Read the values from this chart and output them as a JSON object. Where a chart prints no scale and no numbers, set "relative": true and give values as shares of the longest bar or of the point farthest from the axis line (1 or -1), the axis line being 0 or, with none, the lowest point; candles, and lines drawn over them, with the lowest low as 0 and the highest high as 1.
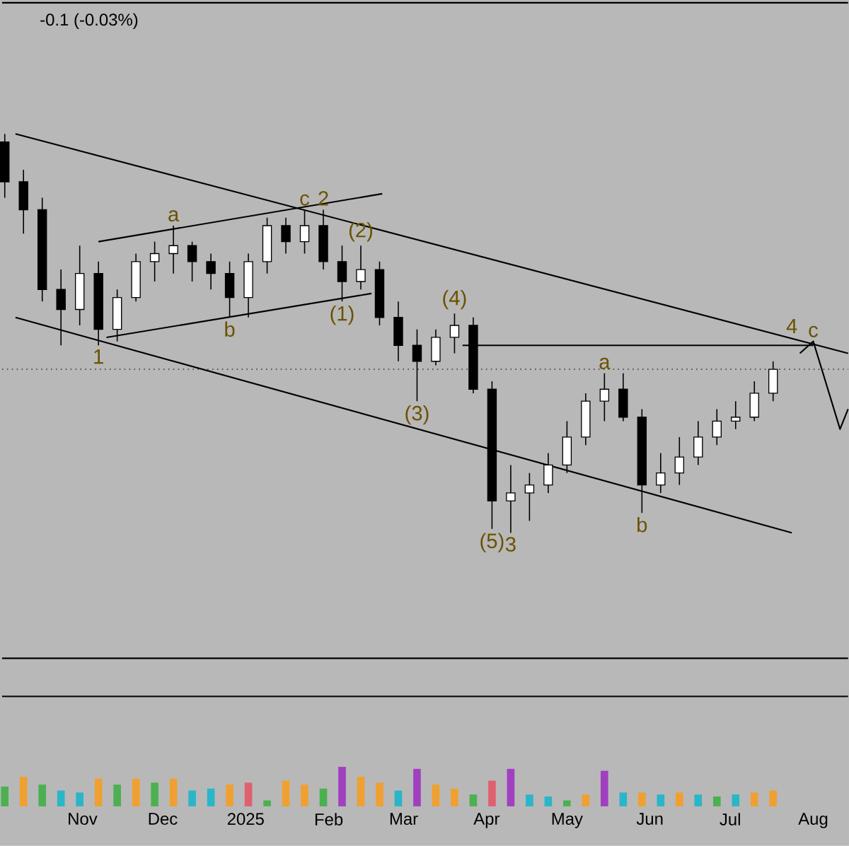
{
  "chart_data": [
    {
      "type": "candlestick",
      "relative": true,
      "tick_labels": false,
      "xlim": [
        "2024-10-02",
        "2025-08-14"
      ],
      "x": [
        "2024-10-03",
        "2024-10-10",
        "2024-10-17",
        "2024-10-24",
        "2024-10-31",
        "2024-11-07",
        "2024-11-14",
        "2024-11-21",
        "2024-11-28",
        "2024-12-05",
        "2024-12-12",
        "2024-12-19",
        "2024-12-26",
        "2025-01-02",
        "2025-01-09",
        "2025-01-16",
        "2025-01-23",
        "2025-01-30",
        "2025-02-06",
        "2025-02-13",
        "2025-02-20",
        "2025-02-27",
        "2025-03-06",
        "2025-03-13",
        "2025-03-20",
        "2025-03-27",
        "2025-04-03",
        "2025-04-10",
        "2025-04-17",
        "2025-04-24",
        "2025-05-01",
        "2025-05-08",
        "2025-05-15",
        "2025-05-22",
        "2025-05-29",
        "2025-06-05",
        "2025-06-12",
        "2025-06-19",
        "2025-06-26",
        "2025-07-03",
        "2025-07-10",
        "2025-07-17"
      ],
      "ohlc": [
        [
          0.98,
          1.0,
          0.84,
          0.88
        ],
        [
          0.88,
          0.91,
          0.75,
          0.81
        ],
        [
          0.81,
          0.84,
          0.58,
          0.61
        ],
        [
          0.61,
          0.66,
          0.47,
          0.56
        ],
        [
          0.56,
          0.72,
          0.52,
          0.65
        ],
        [
          0.65,
          0.68,
          0.47,
          0.51
        ],
        [
          0.51,
          0.61,
          0.48,
          0.59
        ],
        [
          0.59,
          0.7,
          0.58,
          0.68
        ],
        [
          0.68,
          0.73,
          0.63,
          0.7
        ],
        [
          0.7,
          0.77,
          0.65,
          0.72
        ],
        [
          0.72,
          0.73,
          0.63,
          0.68
        ],
        [
          0.68,
          0.7,
          0.61,
          0.65
        ],
        [
          0.65,
          0.68,
          0.54,
          0.59
        ],
        [
          0.59,
          0.7,
          0.54,
          0.68
        ],
        [
          0.68,
          0.79,
          0.65,
          0.77
        ],
        [
          0.77,
          0.79,
          0.7,
          0.73
        ],
        [
          0.73,
          0.81,
          0.7,
          0.77
        ],
        [
          0.77,
          0.81,
          0.66,
          0.68
        ],
        [
          0.68,
          0.72,
          0.58,
          0.63
        ],
        [
          0.63,
          0.72,
          0.61,
          0.66
        ],
        [
          0.66,
          0.68,
          0.52,
          0.54
        ],
        [
          0.54,
          0.58,
          0.43,
          0.47
        ],
        [
          0.47,
          0.51,
          0.33,
          0.43
        ],
        [
          0.43,
          0.51,
          0.42,
          0.49
        ],
        [
          0.49,
          0.55,
          0.45,
          0.52
        ],
        [
          0.52,
          0.54,
          0.35,
          0.36
        ],
        [
          0.36,
          0.38,
          0.01,
          0.08
        ],
        [
          0.08,
          0.17,
          0.0,
          0.1
        ],
        [
          0.1,
          0.15,
          0.03,
          0.12
        ],
        [
          0.12,
          0.2,
          0.1,
          0.17
        ],
        [
          0.17,
          0.28,
          0.15,
          0.24
        ],
        [
          0.24,
          0.35,
          0.22,
          0.33
        ],
        [
          0.33,
          0.4,
          0.28,
          0.36
        ],
        [
          0.36,
          0.4,
          0.28,
          0.29
        ],
        [
          0.29,
          0.31,
          0.05,
          0.12
        ],
        [
          0.12,
          0.2,
          0.1,
          0.15
        ],
        [
          0.15,
          0.24,
          0.12,
          0.19
        ],
        [
          0.19,
          0.28,
          0.17,
          0.24
        ],
        [
          0.24,
          0.31,
          0.22,
          0.28
        ],
        [
          0.28,
          0.33,
          0.26,
          0.29
        ],
        [
          0.29,
          0.38,
          0.28,
          0.35
        ],
        [
          0.35,
          0.43,
          0.33,
          0.41
        ]
      ],
      "series": [
        {
          "type": "line",
          "color": "#000000",
          "x": [
            "2024-10-07",
            "2025-08-14"
          ],
          "values": [
            1.0,
            0.45
          ]
        },
        {
          "type": "line",
          "color": "#000000",
          "x": [
            "2024-10-07",
            "2025-07-24"
          ],
          "values": [
            0.54,
            0.0
          ]
        },
        {
          "type": "line",
          "color": "#000000",
          "x": [
            "2024-11-07",
            "2025-02-21"
          ],
          "values": [
            0.73,
            0.85
          ]
        },
        {
          "type": "line",
          "color": "#000000",
          "x": [
            "2024-11-10",
            "2025-02-17"
          ],
          "values": [
            0.49,
            0.6
          ]
        },
        {
          "type": "line",
          "color": "#000000",
          "x": [
            "2025-03-23",
            "2025-08-01"
          ],
          "values": [
            0.47,
            0.47
          ]
        },
        {
          "type": "line",
          "color": "#000000",
          "x": [
            "2025-07-27",
            "2025-08-01",
            "2025-08-11",
            "2025-08-14"
          ],
          "values": [
            0.45,
            0.48,
            0.26,
            0.31
          ]
        }
      ],
      "ref_lines": [
        {
          "axis": "y",
          "value": 0.41,
          "color": "#333333",
          "line_style": "dotted"
        }
      ],
      "annotations": [
        "-0.1 (-0.03%)",
        {
          "text": "1",
          "x": "2024-11-07",
          "y": 0.47
        },
        {
          "text": "a",
          "x": "2024-12-05",
          "y": 0.77
        },
        {
          "text": "b",
          "x": "2024-12-26",
          "y": 0.54
        },
        {
          "text": "2",
          "x": "2025-01-30",
          "y": 0.81
        },
        {
          "text": "c",
          "x": "2025-01-23",
          "y": 0.81
        },
        {
          "text": "(1)",
          "x": "2025-02-06",
          "y": 0.58
        },
        {
          "text": "(2)",
          "x": "2025-02-13",
          "y": 0.72
        },
        {
          "text": "(3)",
          "x": "2025-03-06",
          "y": 0.33
        },
        {
          "text": "(4)",
          "x": "2025-03-20",
          "y": 0.55
        },
        {
          "text": "(5)",
          "x": "2025-04-03",
          "y": 0.01
        },
        {
          "text": "3",
          "x": "2025-04-10",
          "y": 0.0
        },
        {
          "text": "a",
          "x": "2025-05-15",
          "y": 0.4
        },
        {
          "text": "b",
          "x": "2025-05-29",
          "y": 0.05
        },
        {
          "text": "4",
          "x": "2025-07-24",
          "y": 0.49
        },
        {
          "text": "c",
          "x": "2025-08-01",
          "y": 0.48
        }
      ]
    },
    {
      "type": "bar",
      "relative": true,
      "tick_labels": "x",
      "xlim": [
        "2024-10-02",
        "2025-08-14"
      ],
      "xticks": [
        {
          "value": "2024-11-01",
          "label": "Nov"
        },
        {
          "value": "2024-12-01",
          "label": "Dec"
        },
        {
          "value": "2025-01-01",
          "label": "2025"
        },
        {
          "value": "2025-02-01",
          "label": "Feb"
        },
        {
          "value": "2025-03-01",
          "label": "Mar"
        },
        {
          "value": "2025-04-01",
          "label": "Apr"
        },
        {
          "value": "2025-05-01",
          "label": "May"
        },
        {
          "value": "2025-06-01",
          "label": "Jun"
        },
        {
          "value": "2025-07-01",
          "label": "Jul"
        },
        {
          "value": "2025-08-01",
          "label": "Aug"
        }
      ],
      "x": [
        "2024-10-03",
        "2024-10-10",
        "2024-10-17",
        "2024-10-24",
        "2024-10-31",
        "2024-11-07",
        "2024-11-14",
        "2024-11-21",
        "2024-11-28",
        "2024-12-05",
        "2024-12-12",
        "2024-12-19",
        "2024-12-26",
        "2025-01-02",
        "2025-01-09",
        "2025-01-16",
        "2025-01-23",
        "2025-01-30",
        "2025-02-06",
        "2025-02-13",
        "2025-02-20",
        "2025-02-27",
        "2025-03-06",
        "2025-03-13",
        "2025-03-20",
        "2025-03-27",
        "2025-04-03",
        "2025-04-10",
        "2025-04-17",
        "2025-04-24",
        "2025-05-01",
        "2025-05-08",
        "2025-05-15",
        "2025-05-22",
        "2025-05-29",
        "2025-06-05",
        "2025-06-12",
        "2025-06-19",
        "2025-06-26",
        "2025-07-03",
        "2025-07-10",
        "2025-07-17"
      ],
      "values": [
        0.5,
        0.75,
        0.55,
        0.4,
        0.35,
        0.7,
        0.55,
        0.7,
        0.6,
        0.7,
        0.4,
        0.45,
        0.55,
        0.6,
        0.15,
        0.65,
        0.55,
        0.45,
        1.0,
        0.75,
        0.6,
        0.4,
        0.95,
        0.55,
        0.45,
        0.3,
        0.65,
        0.95,
        0.3,
        0.25,
        0.15,
        0.3,
        0.9,
        0.35,
        0.35,
        0.3,
        0.35,
        0.3,
        0.25,
        0.3,
        0.35,
        0.4
      ],
      "colors": [
        "#4cb050",
        "#f0a030",
        "#4cb050",
        "#2bb5c8",
        "#2bb5c8",
        "#f0a030",
        "#4cb050",
        "#f0a030",
        "#4cb050",
        "#f0a030",
        "#2bb5c8",
        "#2bb5c8",
        "#f0a030",
        "#e06070",
        "#4cb050",
        "#f0a030",
        "#f0a030",
        "#4cb050",
        "#a040c0",
        "#f0a030",
        "#f0a030",
        "#2bb5c8",
        "#a040c0",
        "#f0a030",
        "#f0a030",
        "#4cb050",
        "#e06070",
        "#a040c0",
        "#2bb5c8",
        "#2bb5c8",
        "#4cb050",
        "#f0a030",
        "#a040c0",
        "#2bb5c8",
        "#f0a030",
        "#2bb5c8",
        "#f0a030",
        "#2bb5c8",
        "#4cb050",
        "#2bb5c8",
        "#f0a030",
        "#f0a030"
      ]
    }
  ]
}
